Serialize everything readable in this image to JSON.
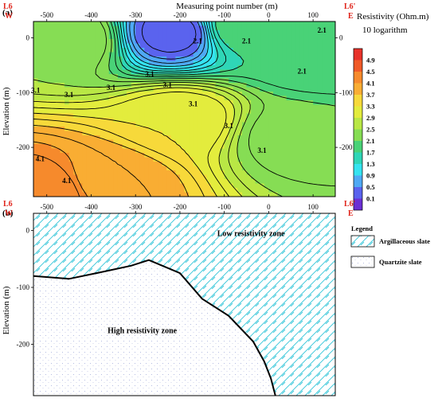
{
  "chart_data": [
    {
      "panel_label": "(a)",
      "type": "heatmap",
      "title": "Measuring point number (m)",
      "xlabel": "Measuring point number (m)",
      "ylabel": "Elevation (m)",
      "xlim": [
        -530,
        150
      ],
      "ylim": [
        -290,
        30
      ],
      "x_ticks": [
        -500,
        -400,
        -300,
        -200,
        -100,
        0,
        100
      ],
      "y_ticks": [
        0,
        -100,
        -200
      ],
      "y_ticks_right": [
        0,
        -100,
        -200
      ],
      "profile_start": {
        "line": "L6",
        "direction": "W"
      },
      "profile_end": {
        "line": "L6'",
        "direction": "E"
      },
      "colorbar": {
        "title": "Resistivity (Ohm.m)",
        "subtitle": "10 logarithm",
        "ticks": [
          4.9,
          4.5,
          4.1,
          3.7,
          3.3,
          2.9,
          2.5,
          2.1,
          1.7,
          1.3,
          0.9,
          0.5,
          0.1
        ],
        "colors": [
          "#e8322a",
          "#f05a28",
          "#f68a2c",
          "#f9ad33",
          "#f7d93a",
          "#e3ec3d",
          "#b9e745",
          "#86dd54",
          "#49d277",
          "#2fd6b7",
          "#35e3f0",
          "#4fa9f4",
          "#5a63ee",
          "#6b2fd4"
        ]
      },
      "contour_labels": [
        {
          "text": "2.1",
          "x": -160,
          "y": -10
        },
        {
          "text": "2.1",
          "x": -50,
          "y": -10
        },
        {
          "text": "2.1",
          "x": 75,
          "y": -65
        },
        {
          "text": "2.1",
          "x": 120,
          "y": 10
        },
        {
          "text": "3.1",
          "x": -525,
          "y": -100
        },
        {
          "text": "3.1",
          "x": -450,
          "y": -108
        },
        {
          "text": "3.1",
          "x": -355,
          "y": -95
        },
        {
          "text": "3.1",
          "x": -268,
          "y": -70
        },
        {
          "text": "3.1",
          "x": -228,
          "y": -90
        },
        {
          "text": "3.1",
          "x": -170,
          "y": -125
        },
        {
          "text": "3.1",
          "x": -90,
          "y": -165
        },
        {
          "text": "3.1",
          "x": -15,
          "y": -210
        },
        {
          "text": "4.1",
          "x": -515,
          "y": -225
        },
        {
          "text": "4.1",
          "x": -455,
          "y": -265
        }
      ],
      "value_grid_anchors": [
        {
          "x": -215,
          "y": 10,
          "value": 0.2
        },
        {
          "x": -60,
          "y": 20,
          "value": 1.9
        },
        {
          "x": 100,
          "y": -30,
          "value": 1.7
        },
        {
          "x": 50,
          "y": -180,
          "value": 2.2
        },
        {
          "x": -450,
          "y": 0,
          "value": 2.5
        },
        {
          "x": -200,
          "y": -150,
          "value": 3.3
        },
        {
          "x": -500,
          "y": -280,
          "value": 4.5
        },
        {
          "x": -360,
          "y": -260,
          "value": 3.9
        }
      ]
    },
    {
      "panel_label": "(b)",
      "type": "other",
      "xlabel": "",
      "ylabel": "Elevation (m)",
      "xlim": [
        -530,
        150
      ],
      "ylim": [
        -290,
        30
      ],
      "x_ticks": [
        -500,
        -400,
        -300,
        -200,
        -100,
        0,
        100
      ],
      "y_ticks": [
        0,
        -100,
        -200
      ],
      "profile_start": {
        "line": "L6",
        "direction": "W"
      },
      "profile_end": {
        "line": "L6'",
        "direction": "E"
      },
      "zones": [
        {
          "name": "Low resistivity zone",
          "lithology": "Argillaceous slate"
        },
        {
          "name": "High resistivity zone",
          "lithology": "Quartzite slate"
        }
      ],
      "boundary": [
        {
          "x": -530,
          "y": -80
        },
        {
          "x": -450,
          "y": -85
        },
        {
          "x": -370,
          "y": -72
        },
        {
          "x": -310,
          "y": -62
        },
        {
          "x": -270,
          "y": -52
        },
        {
          "x": -200,
          "y": -75
        },
        {
          "x": -150,
          "y": -120
        },
        {
          "x": -90,
          "y": -150
        },
        {
          "x": -35,
          "y": -195
        },
        {
          "x": -10,
          "y": -230
        },
        {
          "x": 5,
          "y": -260
        },
        {
          "x": 15,
          "y": -290
        }
      ],
      "zone_label_positions": [
        {
          "text": "Low resistivity zone",
          "x": -40,
          "y": -10
        },
        {
          "text": "High resistivity zone",
          "x": -285,
          "y": -180
        }
      ],
      "legend": {
        "title": "Legend",
        "items": [
          {
            "label": "Argillaceous slate",
            "pattern": "diagonal-hatch",
            "color": "#34c6d9"
          },
          {
            "label": "Quartzite slate",
            "pattern": "dots",
            "color": "#9aa4d8"
          }
        ]
      }
    }
  ]
}
